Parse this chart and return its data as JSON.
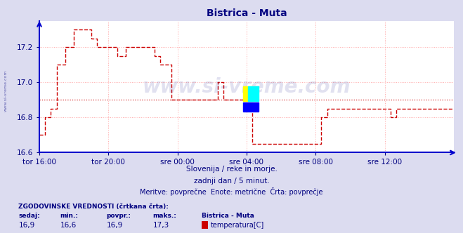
{
  "title": "Bistrica - Muta",
  "title_color": "#000080",
  "background_color": "#dcdcf0",
  "plot_bg_color": "#ffffff",
  "line_color": "#cc0000",
  "line_style": "--",
  "line_width": 1.0,
  "grid_color": "#ffaaaa",
  "grid_style": ":",
  "axis_color": "#0000cc",
  "tick_color": "#000080",
  "watermark": "www.si-vreme.com",
  "watermark_color": "#1a1a8c",
  "watermark_alpha": 0.13,
  "text_line1": "Slovenija / reke in morje.",
  "text_line2": "zadnji dan / 5 minut.",
  "text_line3": "Meritve: povprečne  Enote: metrične  Črta: povprečje",
  "text_color": "#000080",
  "legend_title": "ZGODOVINSKE VREDNOSTI (črtkana črta):",
  "legend_headers": [
    "sedaj:",
    "min.:",
    "povpr.:",
    "maks.:",
    "Bistrica - Muta"
  ],
  "legend_values": [
    "16,9",
    "16,6",
    "16,9",
    "17,3"
  ],
  "legend_series": "temperatura[C]",
  "legend_color": "#cc0000",
  "ylim": [
    16.6,
    17.35
  ],
  "yticks": [
    16.6,
    16.8,
    17.0,
    17.2
  ],
  "xtick_labels": [
    "tor 16:00",
    "tor 20:00",
    "sre 00:00",
    "sre 04:00",
    "sre 08:00",
    "sre 12:00"
  ],
  "xtick_positions": [
    0,
    96,
    192,
    288,
    384,
    480
  ],
  "total_points": 576,
  "avg_value": 16.9,
  "step_data": [
    [
      0,
      16.7
    ],
    [
      8,
      16.8
    ],
    [
      16,
      16.85
    ],
    [
      24,
      17.1
    ],
    [
      36,
      17.2
    ],
    [
      48,
      17.3
    ],
    [
      72,
      17.25
    ],
    [
      80,
      17.2
    ],
    [
      100,
      17.2
    ],
    [
      108,
      17.15
    ],
    [
      120,
      17.2
    ],
    [
      144,
      17.2
    ],
    [
      160,
      17.15
    ],
    [
      168,
      17.1
    ],
    [
      184,
      16.9
    ],
    [
      192,
      16.9
    ],
    [
      240,
      16.9
    ],
    [
      248,
      17.0
    ],
    [
      256,
      16.9
    ],
    [
      280,
      16.9
    ],
    [
      288,
      16.9
    ],
    [
      296,
      16.65
    ],
    [
      384,
      16.65
    ],
    [
      392,
      16.8
    ],
    [
      400,
      16.85
    ],
    [
      480,
      16.85
    ],
    [
      488,
      16.8
    ],
    [
      496,
      16.85
    ],
    [
      576,
      16.85
    ]
  ]
}
